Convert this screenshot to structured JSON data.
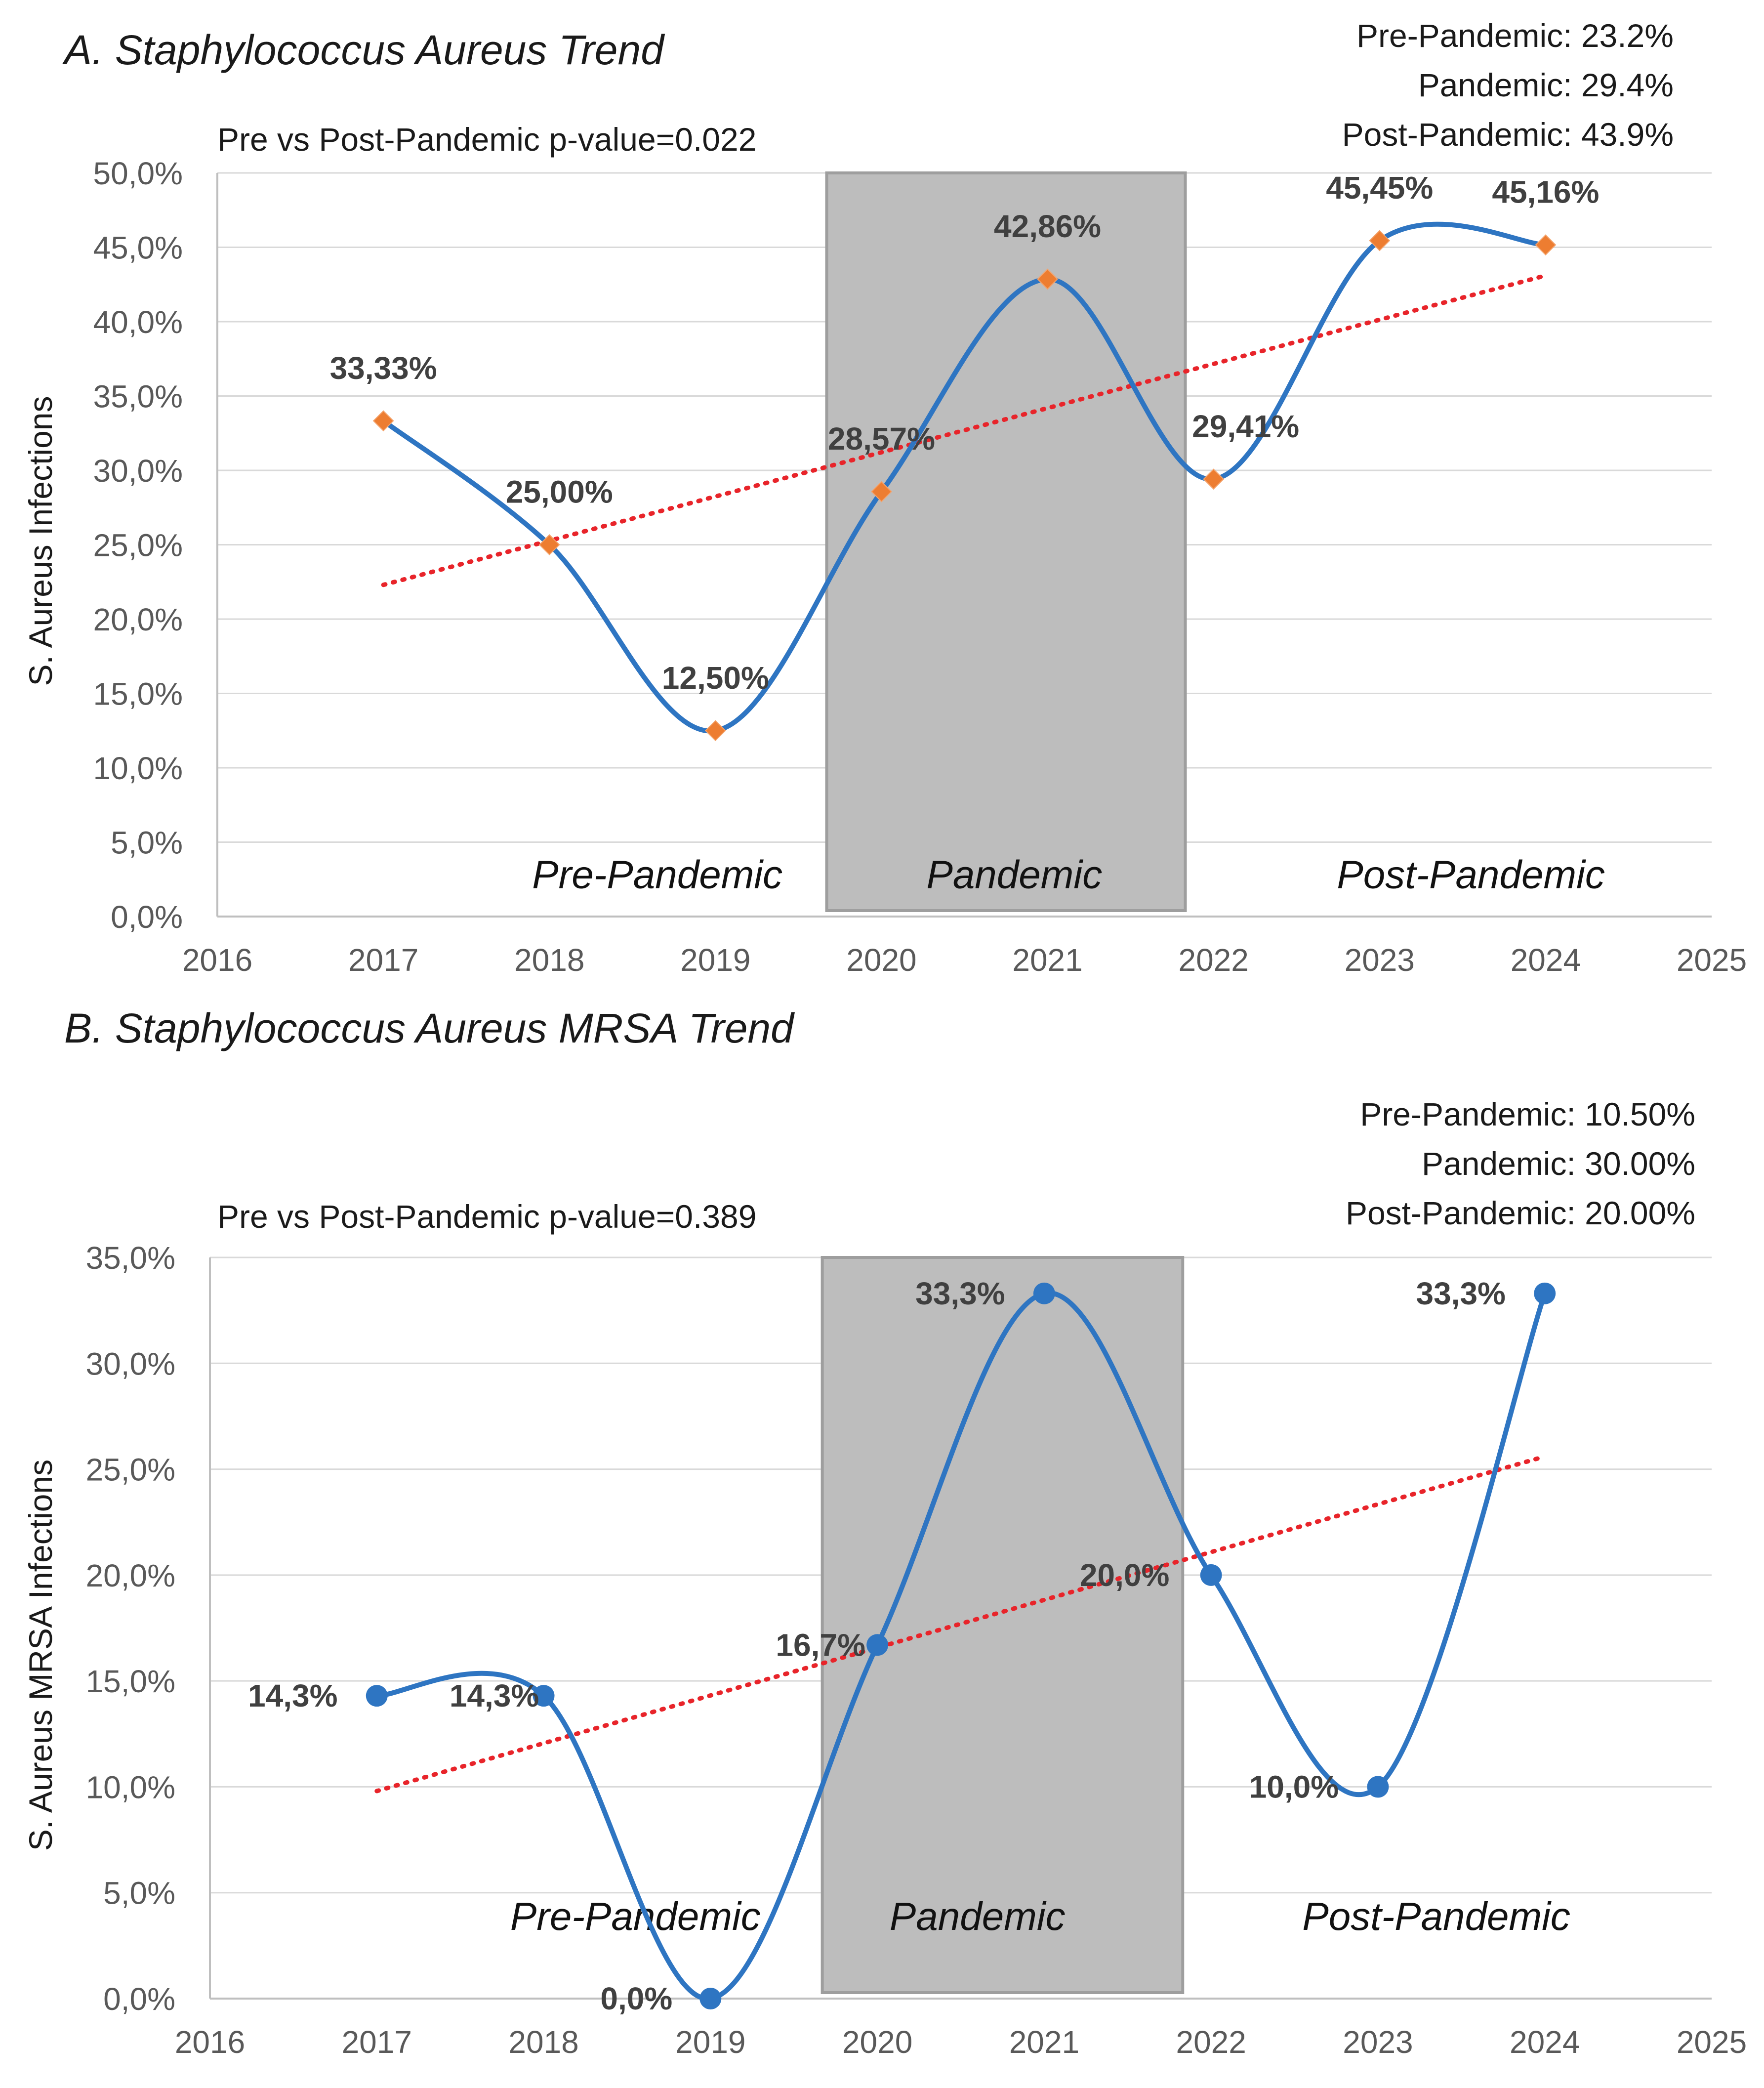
{
  "chart_data": [
    {
      "type": "line",
      "title": "A. Staphylococcus Aureus Trend",
      "ylabel": "S. Aureus Infections",
      "xlabel": "",
      "pvalue_text": "Pre vs Post-Pandemic p-value=0.022",
      "summary": [
        "Pre-Pandemic: 23.2%",
        "Pandemic: 29.4%",
        "Post-Pandemic: 43.9%"
      ],
      "xlim": [
        2016,
        2025
      ],
      "ylim": [
        0,
        50
      ],
      "x_ticks": [
        2016,
        2017,
        2018,
        2019,
        2020,
        2021,
        2022,
        2023,
        2024,
        2025
      ],
      "y_ticks": [
        "0,0%",
        "5,0%",
        "10,0%",
        "15,0%",
        "20,0%",
        "25,0%",
        "30,0%",
        "35,0%",
        "40,0%",
        "45,0%",
        "50,0%"
      ],
      "grid": "horizontal",
      "series": [
        {
          "x": [
            2017,
            2018,
            2019,
            2020,
            2021,
            2022,
            2023,
            2024
          ],
          "values": [
            33.33,
            25.0,
            12.5,
            28.57,
            42.86,
            29.41,
            45.45,
            45.16
          ],
          "data_labels": [
            "33,33%",
            "25,00%",
            "12,50%",
            "28,57%",
            "42,86%",
            "29,41%",
            "45,45%",
            "45,16%"
          ],
          "line_color": "#2e75c2",
          "marker": "diamond",
          "marker_color": "#ed7d31"
        }
      ],
      "trendline": {
        "x": [
          2017,
          2024
        ],
        "y": [
          22.3,
          43.1
        ],
        "color": "#e8242a",
        "style": "dotted"
      },
      "shaded_period": {
        "x": [
          2019.67,
          2021.83
        ],
        "label": "Pandemic",
        "color": "#bdbdbd"
      },
      "period_labels": [
        {
          "text": "Pre-Pandemic",
          "x": 2018.65,
          "y": 2.7
        },
        {
          "text": "Pandemic",
          "x": 2020.8,
          "y": 2.7
        },
        {
          "text": "Post-Pandemic",
          "x": 2023.55,
          "y": 2.7
        }
      ]
    },
    {
      "type": "line",
      "title": "B. Staphylococcus Aureus MRSA Trend",
      "ylabel": "S. Aureus MRSA Infections",
      "xlabel": "",
      "pvalue_text": "Pre vs Post-Pandemic p-value=0.389",
      "summary": [
        "Pre-Pandemic: 10.50%",
        "Pandemic: 30.00%",
        "Post-Pandemic: 20.00%"
      ],
      "xlim": [
        2016,
        2025
      ],
      "ylim": [
        0,
        35
      ],
      "x_ticks": [
        2016,
        2017,
        2018,
        2019,
        2020,
        2021,
        2022,
        2023,
        2024,
        2025
      ],
      "y_ticks": [
        "0,0%",
        "5,0%",
        "10,0%",
        "15,0%",
        "20,0%",
        "25,0%",
        "30,0%",
        "35,0%"
      ],
      "grid": "horizontal",
      "series": [
        {
          "x": [
            2017,
            2018,
            2019,
            2020,
            2021,
            2022,
            2023,
            2024
          ],
          "values": [
            14.3,
            14.3,
            0.0,
            16.7,
            33.3,
            20.0,
            10.0,
            33.3
          ],
          "data_labels": [
            "14,3%",
            "14,3%",
            "0,0%",
            "16,7%",
            "33,3%",
            "20,0%",
            "10,0%",
            "33,3%"
          ],
          "line_color": "#2e75c2",
          "marker": "circle",
          "marker_color": "#2e75c2"
        }
      ],
      "trendline": {
        "x": [
          2017,
          2024
        ],
        "y": [
          9.8,
          25.6
        ],
        "color": "#e8242a",
        "style": "dotted"
      },
      "shaded_period": {
        "x": [
          2019.67,
          2021.83
        ],
        "label": "Pandemic",
        "color": "#bdbdbd"
      },
      "period_labels": [
        {
          "text": "Pre-Pandemic",
          "x": 2018.55,
          "y": 3.8
        },
        {
          "text": "Pandemic",
          "x": 2020.6,
          "y": 3.8
        },
        {
          "text": "Post-Pandemic",
          "x": 2023.35,
          "y": 3.8
        }
      ]
    }
  ]
}
